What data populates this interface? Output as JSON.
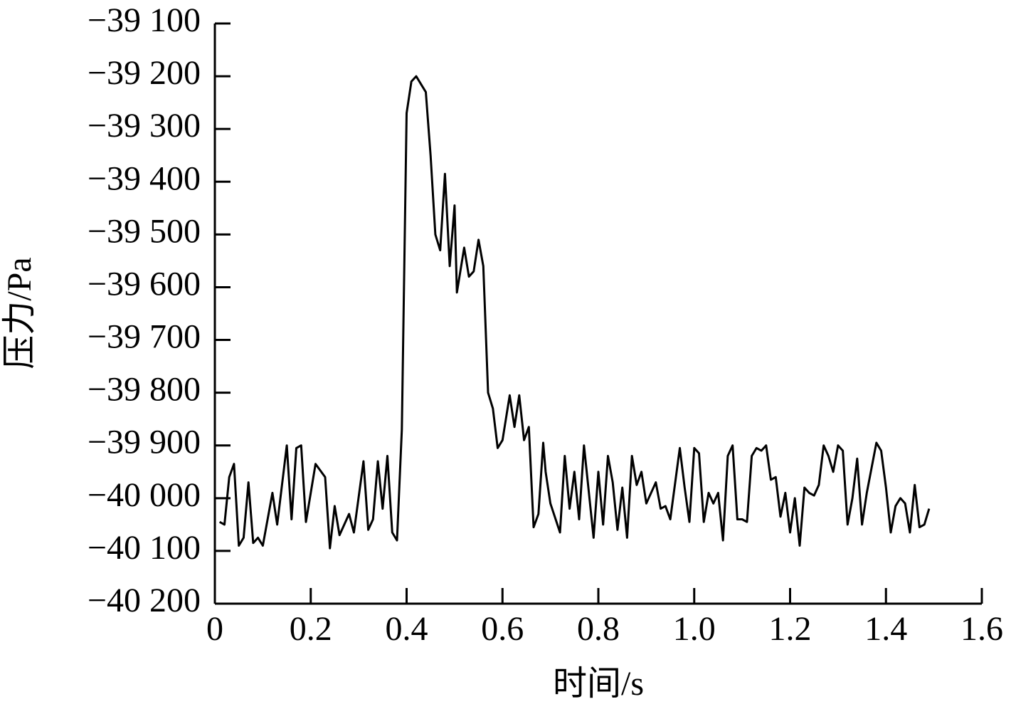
{
  "chart_data": {
    "type": "line",
    "xlabel": "时间/s",
    "ylabel": "压力/Pa",
    "color": "#000000",
    "x": [
      0.01,
      0.02,
      0.03,
      0.04,
      0.05,
      0.06,
      0.07,
      0.08,
      0.09,
      0.1,
      0.12,
      0.13,
      0.15,
      0.16,
      0.17,
      0.18,
      0.19,
      0.21,
      0.23,
      0.24,
      0.25,
      0.26,
      0.28,
      0.29,
      0.31,
      0.32,
      0.33,
      0.34,
      0.35,
      0.36,
      0.37,
      0.38,
      0.39,
      0.4,
      0.41,
      0.42,
      0.43,
      0.44,
      0.45,
      0.46,
      0.47,
      0.48,
      0.49,
      0.5,
      0.505,
      0.52,
      0.53,
      0.54,
      0.55,
      0.56,
      0.57,
      0.58,
      0.59,
      0.6,
      0.615,
      0.625,
      0.635,
      0.645,
      0.655,
      0.665,
      0.675,
      0.685,
      0.69,
      0.7,
      0.72,
      0.73,
      0.74,
      0.75,
      0.76,
      0.77,
      0.79,
      0.8,
      0.81,
      0.82,
      0.83,
      0.84,
      0.85,
      0.86,
      0.87,
      0.88,
      0.89,
      0.9,
      0.92,
      0.93,
      0.94,
      0.95,
      0.97,
      0.98,
      0.99,
      1.0,
      1.01,
      1.02,
      1.03,
      1.04,
      1.05,
      1.06,
      1.07,
      1.08,
      1.09,
      1.1,
      1.11,
      1.12,
      1.13,
      1.14,
      1.15,
      1.16,
      1.17,
      1.18,
      1.19,
      1.2,
      1.21,
      1.22,
      1.23,
      1.24,
      1.25,
      1.26,
      1.27,
      1.28,
      1.29,
      1.3,
      1.31,
      1.32,
      1.33,
      1.34,
      1.35,
      1.36,
      1.38,
      1.39,
      1.4,
      1.41,
      1.42,
      1.43,
      1.44,
      1.45,
      1.46,
      1.47,
      1.48,
      1.49
    ],
    "values": [
      -40045,
      -40050,
      -39960,
      -39935,
      -40090,
      -40075,
      -39970,
      -40085,
      -40075,
      -40090,
      -39990,
      -40050,
      -39900,
      -40040,
      -39905,
      -39900,
      -40045,
      -39935,
      -39960,
      -40095,
      -40015,
      -40070,
      -40030,
      -40065,
      -39930,
      -40060,
      -40040,
      -39930,
      -40020,
      -39920,
      -40065,
      -40080,
      -39870,
      -39270,
      -39210,
      -39200,
      -39215,
      -39230,
      -39350,
      -39500,
      -39530,
      -39385,
      -39560,
      -39445,
      -39610,
      -39525,
      -39580,
      -39570,
      -39510,
      -39560,
      -39800,
      -39830,
      -39905,
      -39890,
      -39805,
      -39865,
      -39805,
      -39890,
      -39865,
      -40055,
      -40030,
      -39895,
      -39950,
      -40010,
      -40065,
      -39920,
      -40020,
      -39950,
      -40040,
      -39900,
      -40075,
      -39950,
      -40050,
      -39920,
      -39970,
      -40060,
      -39980,
      -40075,
      -39920,
      -39975,
      -39950,
      -40010,
      -39970,
      -40020,
      -40015,
      -40040,
      -39905,
      -39980,
      -40045,
      -39905,
      -39915,
      -40045,
      -39990,
      -40010,
      -39990,
      -40080,
      -39920,
      -39900,
      -40040,
      -40040,
      -40045,
      -39920,
      -39905,
      -39910,
      -39900,
      -39965,
      -39960,
      -40035,
      -39990,
      -40065,
      -40000,
      -40090,
      -39980,
      -39990,
      -39995,
      -39975,
      -39900,
      -39920,
      -39950,
      -39900,
      -39910,
      -40050,
      -40000,
      -39925,
      -40050,
      -39990,
      -39895,
      -39910,
      -39980,
      -40065,
      -40015,
      -40000,
      -40010,
      -40065,
      -39975,
      -40055,
      -40050,
      -40020
    ],
    "xlim": [
      0,
      1.6
    ],
    "xticks": [
      0,
      0.2,
      0.4,
      0.6,
      0.8,
      {
        "value": 1,
        "label": "1.0"
      },
      1.2,
      1.4,
      1.6
    ],
    "ylim": [
      -40200,
      -39100
    ],
    "yticks": [
      {
        "value": -40200,
        "label": "−40 200"
      },
      {
        "value": -40100,
        "label": "−40 100"
      },
      {
        "value": -40000,
        "label": "−40 000"
      },
      {
        "value": -39900,
        "label": "−39 900"
      },
      {
        "value": -39800,
        "label": "−39 800"
      },
      {
        "value": -39700,
        "label": "−39 700"
      },
      {
        "value": -39600,
        "label": "−39 600"
      },
      {
        "value": -39500,
        "label": "−39 500"
      },
      {
        "value": -39400,
        "label": "−39 400"
      },
      {
        "value": -39300,
        "label": "−39 300"
      },
      {
        "value": -39200,
        "label": "−39 200"
      },
      {
        "value": -39100,
        "label": "−39 100"
      }
    ]
  }
}
